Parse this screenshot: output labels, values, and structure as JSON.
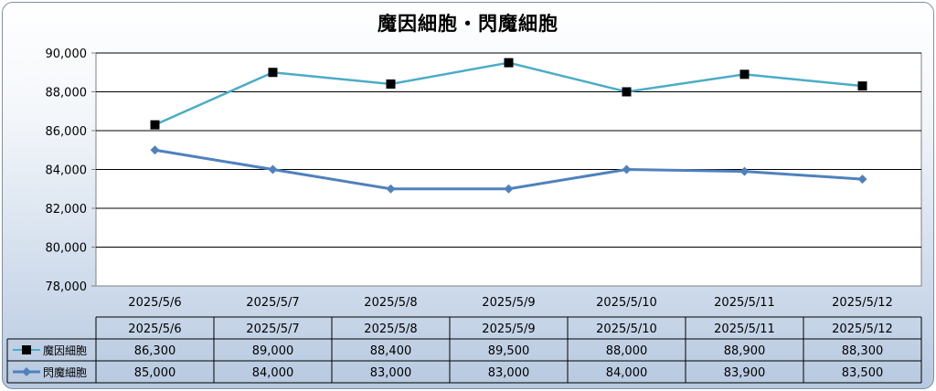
{
  "chart_data": {
    "type": "line",
    "title": "魔因細胞・閃魔細胞",
    "categories": [
      "2025/5/6",
      "2025/5/7",
      "2025/5/8",
      "2025/5/9",
      "2025/5/10",
      "2025/5/11",
      "2025/5/12"
    ],
    "series": [
      {
        "name": "魔因細胞",
        "values": [
          86300,
          89000,
          88400,
          89500,
          88000,
          88900,
          88300
        ],
        "color": "#4bacc6",
        "marker": "square",
        "marker_color": "#000000"
      },
      {
        "name": "閃魔細胞",
        "values": [
          85000,
          84000,
          83000,
          83000,
          84000,
          83900,
          83500
        ],
        "color": "#4f81bd",
        "marker": "diamond",
        "marker_color": "#4f81bd"
      }
    ],
    "ylim": [
      78000,
      90000
    ],
    "yticks": [
      78000,
      80000,
      82000,
      84000,
      86000,
      88000,
      90000
    ],
    "ytick_labels": [
      "78,000",
      "80,000",
      "82,000",
      "84,000",
      "86,000",
      "88,000",
      "90,000"
    ],
    "grid": true,
    "legend": "data-table",
    "data_table": {
      "rows": [
        [
          "86,300",
          "89,000",
          "88,400",
          "89,500",
          "88,000",
          "88,900",
          "88,300"
        ],
        [
          "85,000",
          "84,000",
          "83,000",
          "83,000",
          "84,000",
          "83,900",
          "83,500"
        ]
      ]
    }
  }
}
